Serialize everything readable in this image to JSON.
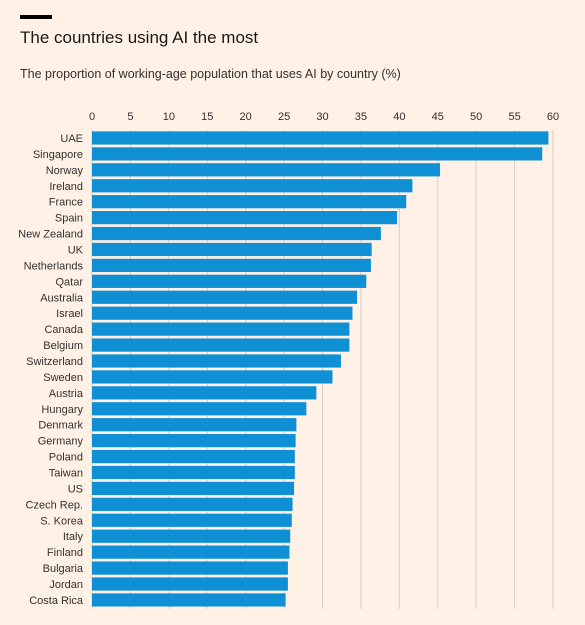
{
  "header": {
    "title": "The countries using AI the most",
    "subtitle": "The proportion of working-age population that uses AI by country (%)"
  },
  "colors": {
    "background": "#fff1e5",
    "bar": "#0f8fd4",
    "gridline": "#d8cfc6",
    "accent_bar": "#000000"
  },
  "chart_data": {
    "type": "bar",
    "orientation": "horizontal",
    "title": "The countries using AI the most",
    "subtitle": "The proportion of working-age population that uses AI by country (%)",
    "xlabel": "",
    "ylabel": "",
    "xlim": [
      0,
      60
    ],
    "xticks": [
      0,
      5,
      10,
      15,
      20,
      25,
      30,
      35,
      40,
      45,
      50,
      55,
      60
    ],
    "tick_position": "top",
    "grid": "vertical",
    "categories": [
      "UAE",
      "Singapore",
      "Norway",
      "Ireland",
      "France",
      "Spain",
      "New Zealand",
      "UK",
      "Netherlands",
      "Qatar",
      "Australia",
      "Israel",
      "Canada",
      "Belgium",
      "Switzerland",
      "Sweden",
      "Austria",
      "Hungary",
      "Denmark",
      "Germany",
      "Poland",
      "Taiwan",
      "US",
      "Czech Rep.",
      "S. Korea",
      "Italy",
      "Finland",
      "Bulgaria",
      "Jordan",
      "Costa Rica"
    ],
    "values": [
      59.4,
      58.6,
      45.3,
      41.7,
      40.9,
      39.7,
      37.6,
      36.4,
      36.3,
      35.7,
      34.5,
      33.9,
      33.5,
      33.5,
      32.4,
      31.3,
      29.2,
      27.9,
      26.6,
      26.5,
      26.4,
      26.4,
      26.3,
      26.1,
      26.0,
      25.8,
      25.7,
      25.5,
      25.5,
      25.2
    ]
  }
}
